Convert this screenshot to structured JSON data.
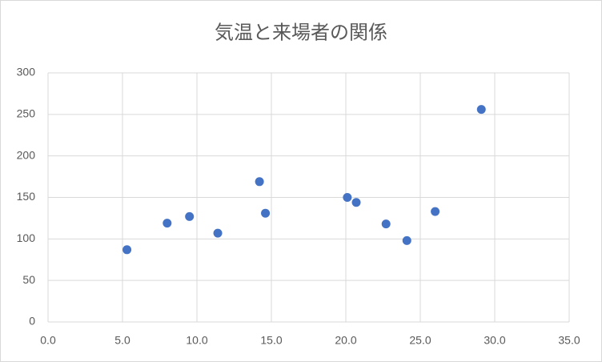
{
  "chart_data": {
    "type": "scatter",
    "title": "気温と来場者の関係",
    "x": [
      5.3,
      8.0,
      9.5,
      11.4,
      14.2,
      14.6,
      20.1,
      20.7,
      22.7,
      24.1,
      26.0,
      29.1
    ],
    "values": [
      87,
      119,
      127,
      107,
      169,
      131,
      150,
      144,
      118,
      98,
      133,
      256
    ],
    "color": "#4472c4",
    "xlim": [
      0,
      35
    ],
    "xticks": [
      {
        "value": 0,
        "label": "0.0"
      },
      {
        "value": 5,
        "label": "5.0"
      },
      {
        "value": 10,
        "label": "10.0"
      },
      {
        "value": 15,
        "label": "15.0"
      },
      {
        "value": 20,
        "label": "20.0"
      },
      {
        "value": 25,
        "label": "25.0"
      },
      {
        "value": 30,
        "label": "30.0"
      },
      {
        "value": 35,
        "label": "35.0"
      }
    ],
    "ylim": [
      0,
      300
    ],
    "yticks": [
      0,
      50,
      100,
      150,
      200,
      250,
      300
    ],
    "grid": true
  }
}
